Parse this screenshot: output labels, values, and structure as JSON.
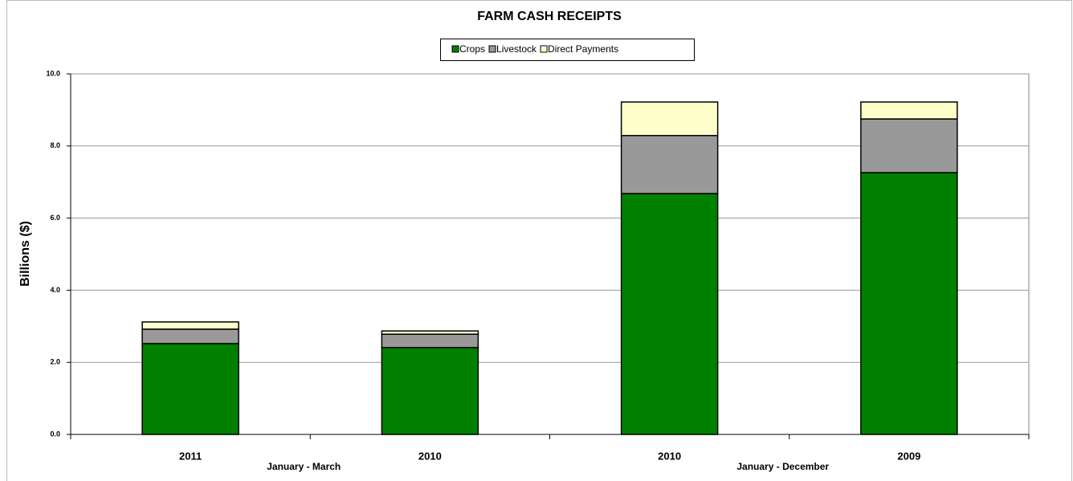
{
  "chart_data": {
    "type": "stacked_bar",
    "title": "FARM CASH RECEIPTS",
    "y_label": "Billions ($)",
    "categories": [
      "2011",
      "2010",
      "2010",
      "2009"
    ],
    "group_labels": [
      "January - March",
      "January - December"
    ],
    "series": [
      {
        "name": "Crops",
        "color": "#008000",
        "values": [
          2.52,
          2.41,
          6.68,
          7.26
        ]
      },
      {
        "name": "Livestock",
        "color": "#999999",
        "values": [
          0.4,
          0.37,
          1.61,
          1.49
        ]
      },
      {
        "name": "Direct Payments",
        "color": "#ffffcc",
        "values": [
          0.2,
          0.09,
          0.93,
          0.47
        ]
      }
    ],
    "ylim": [
      0,
      10
    ],
    "yticks": [
      {
        "value": 0,
        "label": "0.0"
      },
      {
        "value": 2,
        "label": "2.0"
      },
      {
        "value": 4,
        "label": "4.0"
      },
      {
        "value": 6,
        "label": "6.0"
      },
      {
        "value": 8,
        "label": "8.0"
      },
      {
        "value": 10,
        "label": "10.0"
      }
    ],
    "grid": true
  }
}
